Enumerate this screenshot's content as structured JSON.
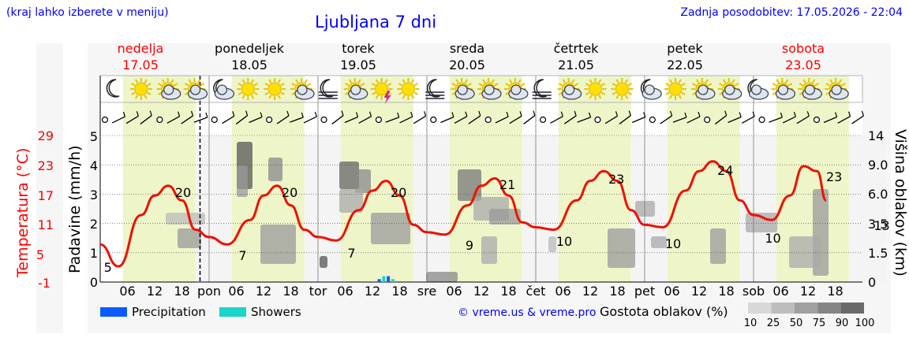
{
  "header": {
    "note": "(kraj lahko izberete v meniju)",
    "title": "Ljubljana 7 dni",
    "updated": "Zadnja posodobitev: 17.05.2026 - 22:04"
  },
  "chart_data": {
    "type": "line",
    "title": "Ljubljana 7 dni",
    "days": [
      {
        "name": "nedelja",
        "date": "17.05",
        "weekend": true
      },
      {
        "name": "ponedeljek",
        "date": "18.05",
        "weekend": false
      },
      {
        "name": "torek",
        "date": "19.05",
        "weekend": false
      },
      {
        "name": "sreda",
        "date": "20.05",
        "weekend": false
      },
      {
        "name": "četrtek",
        "date": "21.05",
        "weekend": false
      },
      {
        "name": "petek",
        "date": "22.05",
        "weekend": false
      },
      {
        "name": "sobota",
        "date": "23.05",
        "weekend": true
      }
    ],
    "x_tick_labels": [
      "06",
      "12",
      "18",
      "pon",
      "06",
      "12",
      "18",
      "tor",
      "06",
      "12",
      "18",
      "sre",
      "06",
      "12",
      "18",
      "čet",
      "06",
      "12",
      "18",
      "pet",
      "06",
      "12",
      "18",
      "sob",
      "06",
      "12",
      "18"
    ],
    "y_left": {
      "label": "Padavine (mm/h)",
      "ticks": [
        "0",
        "1",
        "2",
        "3",
        "4",
        "5"
      ],
      "range": [
        0,
        5
      ]
    },
    "y_temp": {
      "label": "Temperatura (°C)",
      "ticks": [
        "29",
        "23",
        "17",
        "11",
        "5",
        "-1"
      ],
      "range": [
        -1,
        29
      ]
    },
    "y_right": {
      "label": "Višina oblakov (km)",
      "ticks": [
        "0",
        "1.5",
        "3.5",
        "6.0",
        "9.0",
        "14"
      ]
    },
    "temperature": {
      "hours": [
        0,
        4,
        9,
        12,
        15,
        18,
        21,
        24,
        28,
        33,
        36,
        39,
        42,
        45,
        48,
        52,
        57,
        60,
        63,
        66,
        69,
        72,
        76,
        81,
        84,
        87,
        90,
        93,
        96,
        100,
        105,
        108,
        111,
        114,
        117,
        120,
        124,
        129,
        132,
        135,
        138,
        141,
        144,
        148,
        152,
        155,
        158,
        160
      ],
      "values": [
        8,
        3.5,
        14,
        18,
        20,
        17,
        11,
        9.5,
        8,
        13,
        18,
        20,
        16,
        11,
        9.5,
        8.8,
        15,
        19,
        21,
        18,
        12,
        10.5,
        10,
        16,
        20,
        21.5,
        18,
        12.5,
        11.5,
        11,
        17,
        21,
        23,
        21,
        15,
        12,
        11.5,
        19,
        23,
        25,
        23,
        17,
        14,
        13,
        18,
        24,
        23,
        17
      ],
      "labels": [
        {
          "hour": 0.8,
          "text": "5"
        },
        {
          "hour": 16.5,
          "text": "20"
        },
        {
          "hour": 30.5,
          "text": "7"
        },
        {
          "hour": 40,
          "text": "20"
        },
        {
          "hour": 54.5,
          "text": "7"
        },
        {
          "hour": 64,
          "text": "20"
        },
        {
          "hour": 80.5,
          "text": "9"
        },
        {
          "hour": 88,
          "text": "21"
        },
        {
          "hour": 100.5,
          "text": "10"
        },
        {
          "hour": 112,
          "text": "23"
        },
        {
          "hour": 124.5,
          "text": "10"
        },
        {
          "hour": 136,
          "text": "24"
        },
        {
          "hour": 146.5,
          "text": "10"
        },
        {
          "hour": 160,
          "text": "23"
        },
        {
          "hour": 170.5,
          "text": "13"
        }
      ]
    },
    "precipitation": {
      "hours": [
        61.5,
        62.5,
        63.5,
        64.5
      ],
      "values_mm": [
        0.1,
        0.2,
        0.2,
        0.1
      ]
    },
    "legend": [
      {
        "label": "Precipitation",
        "color": "#0a5cff"
      },
      {
        "label": "Showers",
        "color": "#19d6c8"
      }
    ],
    "cloud_scale": {
      "title": "Gostota oblakov (%)",
      "ticks": [
        "10",
        "25",
        "50",
        "75",
        "90",
        "100"
      ]
    },
    "grid": true,
    "legend_position": "bottom",
    "weather_icons": [
      "moon",
      "sun",
      "sun-cloud",
      "sun-cloud",
      "moon-cloud",
      "sun",
      "sun",
      "sun-cloud",
      "moon-fog",
      "sun-cloud",
      "sun-thunder",
      "sun",
      "moon-fog",
      "sun-cloud",
      "sun-cloud",
      "sun-cloud",
      "moon-fog",
      "sun-cloud",
      "sun",
      "sun",
      "moon-cloud",
      "sun",
      "sun-cloud",
      "sun-cloud",
      "moon-cloud",
      "sun-cloud",
      "sun-cloud",
      "sun-cloud"
    ]
  },
  "colors": {
    "temperature_line": "#ee1100",
    "daytime": "#eef5c9",
    "night": "#f4f4f4",
    "weekend_text": "#ff0000",
    "header_text": "#0000ff"
  },
  "footer": {
    "credit": "© vreme.us & vreme.pro"
  }
}
